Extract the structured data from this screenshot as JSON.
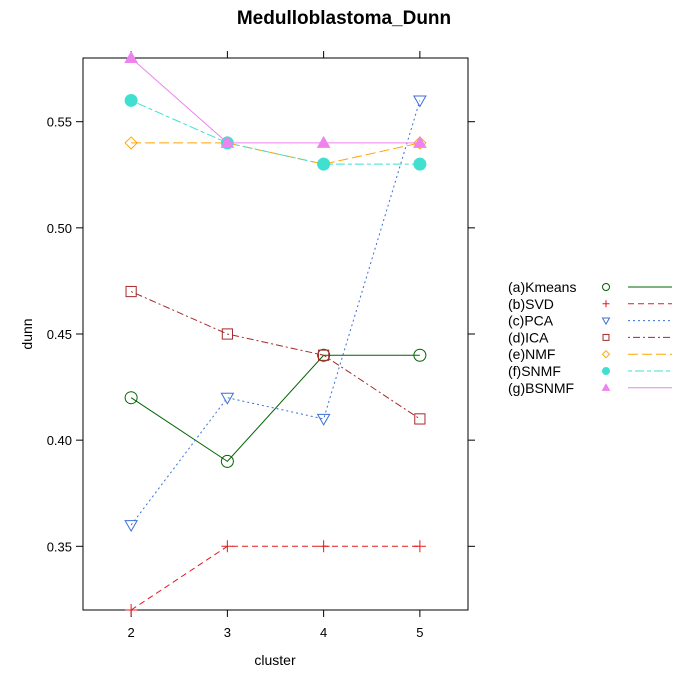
{
  "chart_data": {
    "type": "line",
    "title": "Medulloblastoma_Dunn",
    "xlabel": "cluster",
    "ylabel": "dunn",
    "x": [
      2,
      3,
      4,
      5
    ],
    "xlim": [
      1.5,
      5.5
    ],
    "ylim": [
      0.32,
      0.58
    ],
    "xticks": [
      2,
      3,
      4,
      5
    ],
    "yticks": [
      0.35,
      0.4,
      0.45,
      0.5,
      0.55
    ],
    "ytick_labels": [
      "0.35",
      "0.40",
      "0.45",
      "0.50",
      "0.55"
    ],
    "grid": false,
    "legend_position": "right",
    "series": [
      {
        "name": "(a)Kmeans",
        "values": [
          0.42,
          0.39,
          0.44,
          0.44
        ],
        "color": "#006400",
        "marker": "circle",
        "dash": "solid"
      },
      {
        "name": "(b)SVD",
        "values": [
          0.32,
          0.35,
          0.35,
          0.35
        ],
        "color": "#e31a1c",
        "marker": "plus",
        "dash": "dashed"
      },
      {
        "name": "(c)PCA",
        "values": [
          0.36,
          0.42,
          0.41,
          0.56
        ],
        "color": "#3b6fd6",
        "marker": "triangle-down",
        "dash": "dotted"
      },
      {
        "name": "(d)ICA",
        "values": [
          0.47,
          0.45,
          0.44,
          0.41
        ],
        "color": "#a52a2a",
        "marker": "square",
        "dash": "dotdash"
      },
      {
        "name": "(e)NMF",
        "values": [
          0.54,
          0.54,
          0.53,
          0.54
        ],
        "color": "#ffa500",
        "marker": "diamond",
        "dash": "longdash"
      },
      {
        "name": "(f)SNMF",
        "values": [
          0.56,
          0.54,
          0.53,
          0.53
        ],
        "color": "#40e0d0",
        "marker": "filled-circle",
        "dash": "twodash"
      },
      {
        "name": "(g)BSNMF",
        "values": [
          0.58,
          0.54,
          0.54,
          0.54
        ],
        "color": "#ee82ee",
        "marker": "filled-triangle",
        "dash": "solid"
      }
    ]
  }
}
